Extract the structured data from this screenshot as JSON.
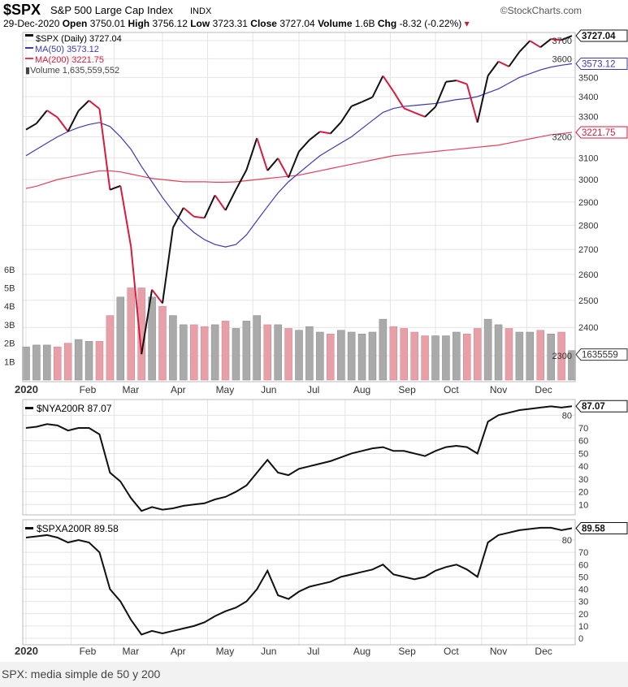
{
  "header": {
    "symbol": "$SPX",
    "name": "S&P 500 Large Cap Index",
    "exchange": "INDX",
    "brand": "©StockCharts.com",
    "date": "29-Dec-2020",
    "open_label": "Open",
    "open": "3750.01",
    "high_label": "High",
    "high": "3756.12",
    "low_label": "Low",
    "low": "3723.31",
    "close_label": "Close",
    "close": "3727.04",
    "volume_label": "Volume",
    "volume": "1.6B",
    "chg_label": "Chg",
    "chg": "-8.32 (-0.22%)"
  },
  "legend": {
    "spx": "$SPX (Daily) 3727.04",
    "ma50": "MA(50) 3573.12",
    "ma200": "MA(200) 3221.75",
    "volume": "Volume 1,635,559,552"
  },
  "colors": {
    "up": "#111111",
    "down": "#d81b3c",
    "ma50": "#3b3bb0",
    "ma200": "#e0405a",
    "vol_up": "#aaaaaa",
    "vol_down": "#e8a0a8"
  },
  "caption": "SPX: media simple de 50 y 200",
  "chart_data": [
    {
      "type": "line",
      "title": "$SPX S&P 500 Large Cap Index",
      "scale": "log",
      "ylim": [
        2237,
        3760
      ],
      "yticks": [
        2300,
        2400,
        2500,
        2600,
        2700,
        2800,
        2900,
        3000,
        3100,
        3200,
        3300,
        3400,
        3500,
        3600,
        3700
      ],
      "months": [
        "2020",
        "Feb",
        "Mar",
        "Apr",
        "May",
        "Jun",
        "Jul",
        "Aug",
        "Sep",
        "Oct",
        "Nov",
        "Dec"
      ],
      "month_starts": [
        0,
        4.3,
        8.4,
        13,
        17.3,
        21.6,
        26,
        30.4,
        34.7,
        39,
        43.4,
        47.7
      ],
      "last_labels": {
        "spx": "3727.04",
        "ma50": "3573.12",
        "ma200": "3221.75",
        "volume": "1635559"
      },
      "series": [
        {
          "name": "$SPX",
          "values": [
            3235,
            3265,
            3330,
            3295,
            3226,
            3328,
            3380,
            3338,
            2954,
            2972,
            2711,
            2305,
            2541,
            2489,
            2790,
            2875,
            2837,
            2831,
            2930,
            2864,
            2955,
            3044,
            3194,
            3041,
            3098,
            3009,
            3130,
            3185,
            3225,
            3216,
            3271,
            3351,
            3373,
            3397,
            3508,
            3427,
            3341,
            3319,
            3298,
            3348,
            3477,
            3484,
            3465,
            3270,
            3509,
            3585,
            3558,
            3638,
            3699,
            3663,
            3709,
            3703,
            3727.04
          ]
        },
        {
          "name": "MA(50)",
          "values": [
            3110,
            3140,
            3170,
            3200,
            3225,
            3245,
            3260,
            3270,
            3250,
            3200,
            3140,
            3060,
            2990,
            2920,
            2860,
            2810,
            2770,
            2740,
            2720,
            2710,
            2720,
            2760,
            2820,
            2880,
            2940,
            2990,
            3030,
            3070,
            3110,
            3140,
            3170,
            3200,
            3240,
            3280,
            3320,
            3340,
            3350,
            3355,
            3360,
            3365,
            3375,
            3385,
            3390,
            3400,
            3420,
            3440,
            3470,
            3500,
            3520,
            3540,
            3555,
            3565,
            3573.12
          ]
        },
        {
          "name": "MA(200)",
          "values": [
            2960,
            2970,
            2985,
            3000,
            3010,
            3020,
            3030,
            3040,
            3040,
            3035,
            3025,
            3015,
            3005,
            3000,
            2995,
            2990,
            2990,
            2990,
            2988,
            2988,
            2990,
            2995,
            3000,
            3005,
            3010,
            3015,
            3020,
            3030,
            3040,
            3050,
            3060,
            3070,
            3080,
            3090,
            3100,
            3110,
            3115,
            3120,
            3125,
            3130,
            3135,
            3140,
            3145,
            3150,
            3155,
            3160,
            3170,
            3180,
            3190,
            3200,
            3210,
            3215,
            3221.75
          ]
        },
        {
          "name": "Volume (B)",
          "values": [
            1.8,
            1.9,
            1.9,
            1.8,
            2.0,
            2.2,
            2.1,
            2.1,
            3.5,
            4.5,
            5.0,
            5.0,
            4.5,
            4.0,
            3.5,
            3.0,
            3.0,
            2.9,
            3.0,
            3.2,
            2.8,
            3.2,
            3.5,
            3.0,
            3.0,
            2.8,
            2.7,
            2.9,
            2.6,
            2.5,
            2.7,
            2.6,
            2.5,
            2.6,
            3.3,
            2.9,
            2.8,
            2.6,
            2.4,
            2.4,
            2.4,
            2.6,
            2.5,
            2.8,
            3.3,
            3.0,
            2.8,
            2.6,
            2.6,
            2.7,
            2.5,
            2.6,
            1.6
          ]
        }
      ],
      "volume_ticks": [
        "1B",
        "2B",
        "3B",
        "4B",
        "5B",
        "6B"
      ]
    },
    {
      "type": "line",
      "title": "$NYA200R 87.07",
      "ylim": [
        0,
        90
      ],
      "yticks": [
        10,
        20,
        30,
        40,
        50,
        60,
        70,
        80
      ],
      "last_label": "87.07",
      "values": [
        70,
        71,
        73,
        72,
        68,
        70,
        70,
        65,
        35,
        28,
        15,
        5,
        8,
        6,
        7,
        9,
        10,
        11,
        14,
        16,
        20,
        25,
        35,
        45,
        35,
        33,
        38,
        40,
        42,
        44,
        47,
        50,
        52,
        54,
        55,
        52,
        52,
        50,
        48,
        52,
        55,
        56,
        55,
        50,
        75,
        80,
        82,
        84,
        85,
        86,
        87,
        86,
        87.07
      ]
    },
    {
      "type": "line",
      "title": "$SPXA200R 89.58",
      "ylim": [
        0,
        95
      ],
      "yticks": [
        0,
        10,
        20,
        30,
        40,
        50,
        60,
        70,
        80
      ],
      "last_label": "89.58",
      "values": [
        82,
        83,
        84,
        82,
        78,
        80,
        78,
        70,
        40,
        30,
        15,
        3,
        6,
        4,
        6,
        8,
        10,
        13,
        18,
        22,
        25,
        30,
        40,
        55,
        35,
        32,
        38,
        42,
        44,
        46,
        50,
        52,
        54,
        56,
        60,
        52,
        50,
        48,
        50,
        55,
        58,
        60,
        56,
        50,
        78,
        84,
        86,
        88,
        89,
        90,
        90,
        88,
        89.58
      ]
    }
  ]
}
